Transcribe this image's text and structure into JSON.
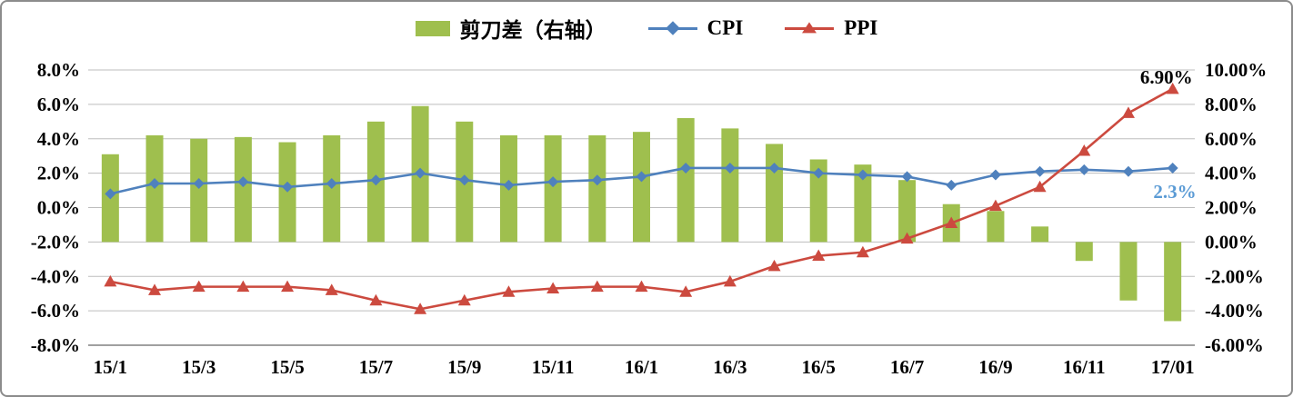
{
  "legend": {
    "items": [
      {
        "label": "剪刀差（右轴）",
        "type": "bar",
        "color": "#9fbf4e"
      },
      {
        "label": "CPI",
        "type": "line-diamond",
        "color": "#4f81bd"
      },
      {
        "label": "PPI",
        "type": "line-triangle",
        "color": "#cc4a3f"
      }
    ]
  },
  "chart_data": {
    "type": "combo_bar_line_dual_axis",
    "x": [
      "15/1",
      "15/2",
      "15/3",
      "15/4",
      "15/5",
      "15/6",
      "15/7",
      "15/8",
      "15/9",
      "15/10",
      "15/11",
      "15/12",
      "16/1",
      "16/2",
      "16/3",
      "16/4",
      "16/5",
      "16/6",
      "16/7",
      "16/8",
      "16/9",
      "16/10",
      "16/11",
      "16/12",
      "17/01"
    ],
    "x_tick_labels": [
      "15/1",
      "15/3",
      "15/5",
      "15/7",
      "15/9",
      "15/11",
      "16/1",
      "16/3",
      "16/5",
      "16/7",
      "16/9",
      "16/11",
      "17/01"
    ],
    "series": [
      {
        "name": "剪刀差（右轴）",
        "type": "bar",
        "axis": "right",
        "color": "#9fbf4e",
        "values": [
          5.1,
          6.2,
          6.0,
          6.1,
          5.8,
          6.2,
          7.0,
          7.9,
          7.0,
          6.2,
          6.2,
          6.2,
          6.4,
          7.2,
          6.6,
          5.7,
          4.8,
          4.5,
          3.6,
          2.2,
          1.8,
          0.9,
          -1.1,
          -3.4,
          -4.6
        ]
      },
      {
        "name": "CPI",
        "type": "line",
        "axis": "left",
        "color": "#4f81bd",
        "marker": "diamond",
        "values": [
          0.8,
          1.4,
          1.4,
          1.5,
          1.2,
          1.4,
          1.6,
          2.0,
          1.6,
          1.3,
          1.5,
          1.6,
          1.8,
          2.3,
          2.3,
          2.3,
          2.0,
          1.9,
          1.8,
          1.3,
          1.9,
          2.1,
          2.2,
          2.1,
          2.3
        ]
      },
      {
        "name": "PPI",
        "type": "line",
        "axis": "left",
        "color": "#cc4a3f",
        "marker": "triangle",
        "values": [
          -4.3,
          -4.8,
          -4.6,
          -4.6,
          -4.6,
          -4.8,
          -5.4,
          -5.9,
          -5.4,
          -4.9,
          -4.7,
          -4.6,
          -4.6,
          -4.9,
          -4.3,
          -3.4,
          -2.8,
          -2.6,
          -1.8,
          -0.9,
          0.1,
          1.2,
          3.3,
          5.5,
          6.9
        ]
      }
    ],
    "left_axis": {
      "min": -8,
      "max": 8,
      "step": 2,
      "tick_labels": [
        "8.0%",
        "6.0%",
        "4.0%",
        "2.0%",
        "0.0%",
        "-2.0%",
        "-4.0%",
        "-6.0%",
        "-8.0%"
      ]
    },
    "right_axis": {
      "min": -6,
      "max": 10,
      "step": 2,
      "tick_labels": [
        "10.00%",
        "8.00%",
        "6.00%",
        "4.00%",
        "2.00%",
        "0.00%",
        "-2.00%",
        "-4.00%",
        "-6.00%"
      ]
    },
    "annotations": [
      {
        "text": "6.90%",
        "color": "#000000",
        "series": "PPI",
        "index": 24
      },
      {
        "text": "2.3%",
        "color": "#5b9bd5",
        "series": "CPI",
        "index": 24
      }
    ],
    "grid": true,
    "legend_position": "top"
  }
}
